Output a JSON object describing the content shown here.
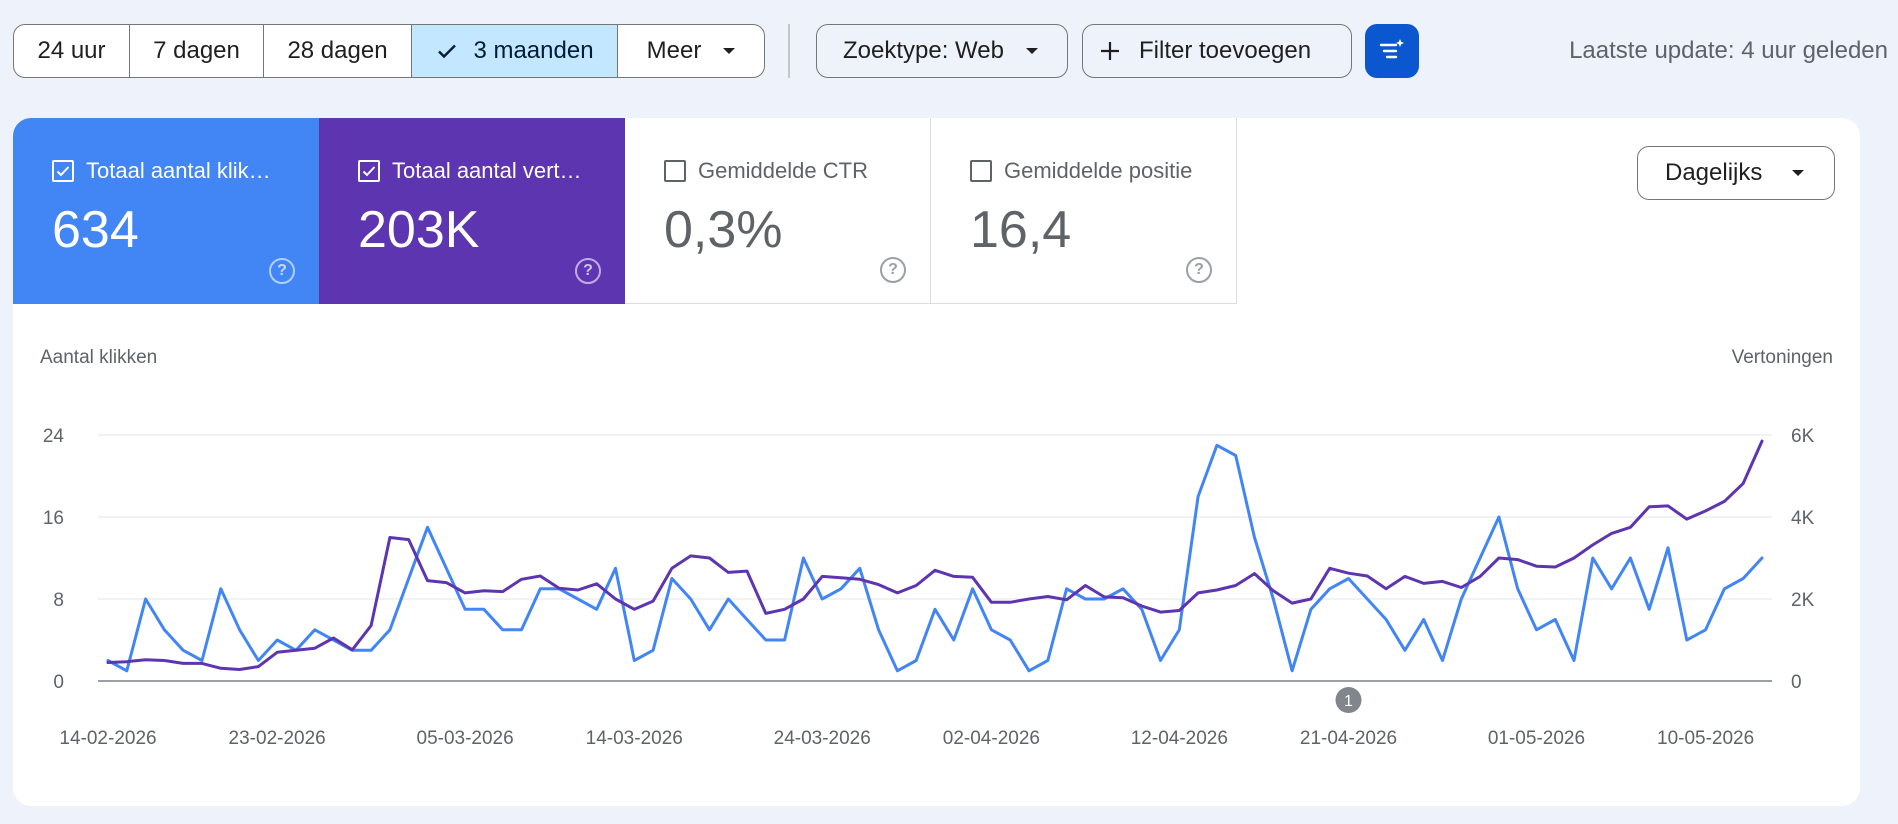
{
  "toolbar": {
    "ranges": [
      "24 uur",
      "7 dagen",
      "28 dagen",
      "3 maanden"
    ],
    "more_label": "Meer",
    "search_type_label": "Zoektype: Web",
    "add_filter_label": "Filter toevoegen",
    "last_update": "Laatste update: 4 uur geleden"
  },
  "metrics": [
    {
      "label": "Totaal aantal klik…",
      "value": "634",
      "checked": true
    },
    {
      "label": "Totaal aantal vert…",
      "value": "203K",
      "checked": true
    },
    {
      "label": "Gemiddelde CTR",
      "value": "0,3%",
      "checked": false
    },
    {
      "label": "Gemiddelde positie",
      "value": "16,4",
      "checked": false
    }
  ],
  "granularity_label": "Dagelijks",
  "colors": {
    "clicks": "#4285f4",
    "impressions": "#5e35b1",
    "accent": "#0b57d0"
  },
  "chart_data": {
    "type": "line",
    "left_axis_label": "Aantal klikken",
    "right_axis_label": "Vertoningen",
    "left_ticks": [
      "0",
      "8",
      "16",
      "24"
    ],
    "right_ticks": [
      "0",
      "2K",
      "4K",
      "6K"
    ],
    "ylim_left": [
      0,
      24
    ],
    "ylim_right": [
      0,
      6000
    ],
    "x_tick_labels": [
      "14-02-2026",
      "23-02-2026",
      "05-03-2026",
      "14-03-2026",
      "24-03-2026",
      "02-04-2026",
      "12-04-2026",
      "21-04-2026",
      "01-05-2026",
      "10-05-2026"
    ],
    "annotation": "1",
    "annotation_date": "21-04-2026",
    "grid": true,
    "start_date": "14-02-2026",
    "series": [
      {
        "name": "Totaal aantal klikken",
        "axis": "left",
        "values": [
          2,
          1,
          8,
          5,
          3,
          2,
          9,
          5,
          2,
          4,
          3,
          5,
          4,
          3,
          3,
          5,
          10,
          15,
          11,
          7,
          7,
          5,
          5,
          9,
          9,
          8,
          7,
          11,
          2,
          3,
          10,
          8,
          5,
          8,
          6,
          4,
          4,
          12,
          8,
          9,
          11,
          5,
          1,
          2,
          7,
          4,
          9,
          5,
          4,
          1,
          2,
          9,
          8,
          8,
          9,
          7,
          2,
          5,
          18,
          23,
          22,
          14,
          8,
          1,
          7,
          9,
          10,
          8,
          6,
          3,
          6,
          2,
          8,
          12,
          16,
          9,
          5,
          6,
          2,
          12,
          9,
          12,
          7,
          13,
          4,
          5,
          9,
          10,
          12
        ]
      },
      {
        "name": "Totaal aantal vertoningen",
        "axis": "right",
        "values": [
          450,
          470,
          520,
          500,
          430,
          430,
          310,
          280,
          350,
          700,
          750,
          800,
          1050,
          760,
          1350,
          3500,
          3450,
          2450,
          2400,
          2150,
          2200,
          2180,
          2480,
          2560,
          2260,
          2220,
          2370,
          2000,
          1750,
          1950,
          2750,
          3050,
          3000,
          2650,
          2680,
          1650,
          1750,
          2000,
          2550,
          2520,
          2480,
          2350,
          2150,
          2330,
          2700,
          2550,
          2530,
          1920,
          1920,
          2000,
          2060,
          1980,
          2330,
          2050,
          2030,
          1830,
          1680,
          1720,
          2150,
          2220,
          2330,
          2620,
          2200,
          1900,
          2000,
          2750,
          2630,
          2560,
          2250,
          2550,
          2380,
          2430,
          2280,
          2550,
          3000,
          2960,
          2800,
          2780,
          3000,
          3320,
          3600,
          3750,
          4250,
          4270,
          3950,
          4150,
          4380,
          4820,
          5850
        ]
      }
    ]
  }
}
